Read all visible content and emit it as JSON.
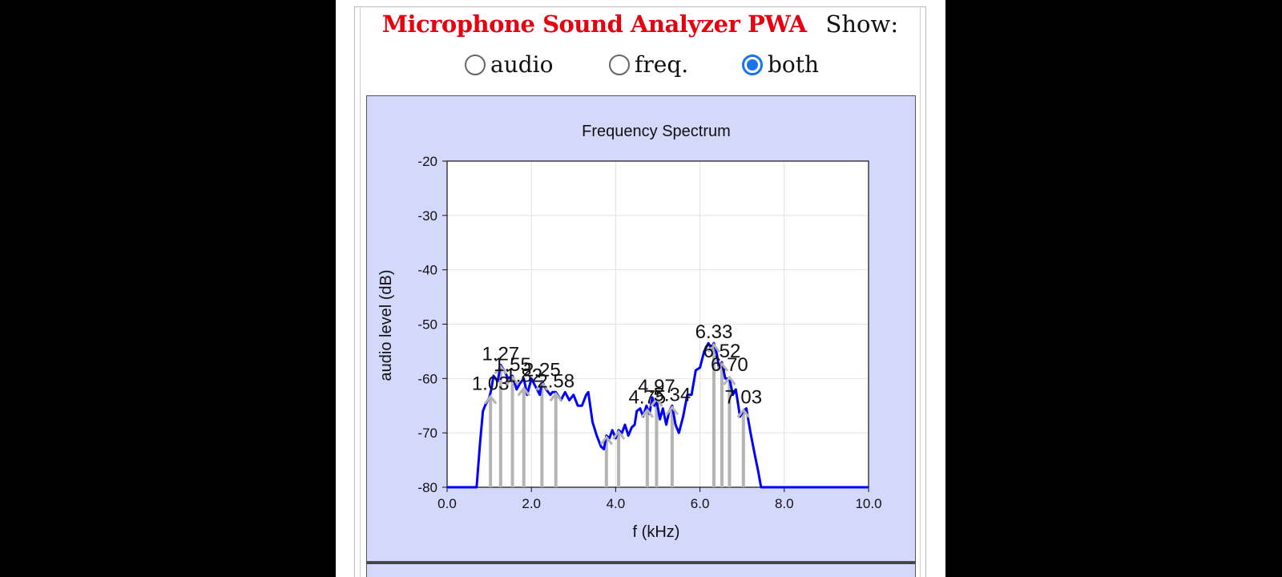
{
  "app": {
    "title": "Microphone Sound Analyzer PWA",
    "show_label": "Show:",
    "title_color": "#e8000e"
  },
  "view_options": [
    {
      "label": "audio",
      "checked": false
    },
    {
      "label": "freq.",
      "checked": false
    },
    {
      "label": "both",
      "checked": true
    }
  ],
  "colors": {
    "panel_bg": "#d4d8fb",
    "series_line": "#0000ff",
    "peak_marker": "#b4b4b4",
    "accent": "#1a73e8"
  },
  "chart_data": {
    "type": "line",
    "title": "Frequency Spectrum",
    "xlabel": "f (kHz)",
    "ylabel": "audio level (dB)",
    "xlim": [
      0,
      10
    ],
    "ylim": [
      -80,
      -20
    ],
    "xticks": [
      "0.0",
      "2.0",
      "4.0",
      "6.0",
      "8.0",
      "10.0"
    ],
    "yticks": [
      "-20",
      "-30",
      "-40",
      "-50",
      "-60",
      "-70",
      "-80"
    ],
    "grid": true,
    "series": [
      {
        "x": [
          0,
          0.7,
          0.78,
          0.85,
          0.9,
          1.0,
          1.05,
          1.1,
          1.2,
          1.27,
          1.35,
          1.45,
          1.55,
          1.65,
          1.72,
          1.82,
          1.9,
          2.0,
          2.1,
          2.2,
          2.25,
          2.35,
          2.45,
          2.5,
          2.58,
          2.7,
          2.8,
          2.9,
          3.0,
          3.1,
          3.2,
          3.3,
          3.35,
          3.45,
          3.55,
          3.65,
          3.72,
          3.78,
          3.85,
          3.92,
          4.0,
          4.07,
          4.15,
          4.22,
          4.3,
          4.38,
          4.45,
          4.5,
          4.58,
          4.65,
          4.73,
          4.8,
          4.87,
          4.92,
          4.97,
          5.05,
          5.12,
          5.2,
          5.27,
          5.34,
          5.42,
          5.5,
          5.6,
          5.7,
          5.8,
          5.9,
          6.0,
          6.1,
          6.2,
          6.27,
          6.33,
          6.4,
          6.45,
          6.52,
          6.6,
          6.7,
          6.78,
          6.85,
          6.95,
          7.03,
          7.1,
          7.2,
          7.3,
          7.38,
          7.45,
          7.6,
          8.0,
          9.0,
          10.0
        ],
        "y": [
          -80,
          -80,
          -72,
          -66,
          -65,
          -63.5,
          -62,
          -59.5,
          -60.5,
          -57.5,
          -58.5,
          -60,
          -59.5,
          -62,
          -61,
          -60,
          -63,
          -60,
          -61.5,
          -63,
          -60.5,
          -62,
          -63,
          -62.5,
          -62.5,
          -64,
          -62.5,
          -64,
          -63,
          -65,
          -65,
          -63,
          -62.5,
          -68,
          -70.5,
          -72.5,
          -73,
          -70.5,
          -71,
          -69.5,
          -71,
          -69.5,
          -70,
          -68.5,
          -70.5,
          -69,
          -68.5,
          -66,
          -65.5,
          -67,
          -65,
          -66.5,
          -63.5,
          -65,
          -64,
          -67.5,
          -65.5,
          -68.5,
          -66,
          -65,
          -68.5,
          -70,
          -67,
          -63,
          -63,
          -58.5,
          -58,
          -55,
          -53.5,
          -54.5,
          -53.5,
          -55.5,
          -58,
          -57,
          -60,
          -60,
          -63,
          -62,
          -67,
          -66,
          -65.5,
          -70,
          -74,
          -77,
          -80,
          -80,
          -80,
          -80,
          -80
        ]
      }
    ],
    "peaks": [
      {
        "x": 1.03,
        "y": -63,
        "label": "1.03"
      },
      {
        "x": 1.27,
        "y": -57.5,
        "label": "1.27"
      },
      {
        "x": 1.55,
        "y": -59.5,
        "label": "1.55"
      },
      {
        "x": 1.82,
        "y": -61.5,
        "label": "1.82"
      },
      {
        "x": 2.25,
        "y": -60.5,
        "label": "2.25"
      },
      {
        "x": 2.58,
        "y": -62.5,
        "label": "2.58"
      },
      {
        "x": 3.78,
        "y": -70.5,
        "label": ""
      },
      {
        "x": 4.07,
        "y": -69.5,
        "label": ""
      },
      {
        "x": 4.75,
        "y": -65.5,
        "label": "4.75"
      },
      {
        "x": 4.97,
        "y": -63.5,
        "label": "4.97"
      },
      {
        "x": 5.34,
        "y": -65,
        "label": "5.34"
      },
      {
        "x": 6.33,
        "y": -53.5,
        "label": "6.33"
      },
      {
        "x": 6.52,
        "y": -57,
        "label": "6.52"
      },
      {
        "x": 6.7,
        "y": -59.5,
        "label": "6.70"
      },
      {
        "x": 7.03,
        "y": -65.5,
        "label": "7.03"
      }
    ]
  }
}
